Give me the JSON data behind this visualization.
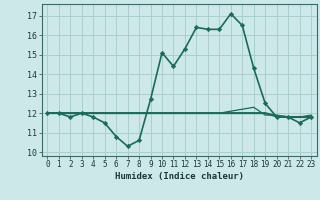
{
  "xlabel": "Humidex (Indice chaleur)",
  "background_color": "#cce8e8",
  "grid_color": "#aacece",
  "line_color": "#1a6b5a",
  "xlim": [
    -0.5,
    23.5
  ],
  "ylim": [
    9.8,
    17.6
  ],
  "yticks": [
    10,
    11,
    12,
    13,
    14,
    15,
    16,
    17
  ],
  "xticks": [
    0,
    1,
    2,
    3,
    4,
    5,
    6,
    7,
    8,
    9,
    10,
    11,
    12,
    13,
    14,
    15,
    16,
    17,
    18,
    19,
    20,
    21,
    22,
    23
  ],
  "series": [
    {
      "x": [
        0,
        1,
        2,
        3,
        4,
        5,
        6,
        7,
        8,
        9,
        10,
        11,
        12,
        13,
        14,
        15,
        16,
        17,
        18,
        19,
        20,
        21,
        22,
        23
      ],
      "y": [
        12,
        12,
        11.8,
        12,
        11.8,
        11.5,
        10.8,
        10.3,
        10.6,
        12.7,
        15.1,
        14.4,
        15.3,
        16.4,
        16.3,
        16.3,
        17.1,
        16.5,
        14.3,
        12.5,
        11.8,
        11.8,
        11.5,
        11.8
      ],
      "lw": 1.2,
      "marker": "D",
      "ms": 2.2,
      "zorder": 5
    },
    {
      "x": [
        0,
        1,
        2,
        3,
        4,
        5,
        6,
        7,
        8,
        9,
        10,
        11,
        12,
        13,
        14,
        15,
        16,
        17,
        18,
        19,
        20,
        21,
        22,
        23
      ],
      "y": [
        12,
        12,
        12,
        12,
        12,
        12,
        12,
        12,
        12,
        12,
        12,
        12,
        12,
        12,
        12,
        12,
        12.1,
        12.2,
        12.3,
        11.9,
        11.9,
        11.8,
        11.8,
        11.9
      ],
      "lw": 0.9,
      "marker": null,
      "ms": 0,
      "zorder": 3
    },
    {
      "x": [
        0,
        1,
        2,
        3,
        4,
        5,
        6,
        7,
        8,
        9,
        10,
        11,
        12,
        13,
        14,
        15,
        16,
        17,
        18,
        19,
        20,
        21,
        22,
        23
      ],
      "y": [
        12,
        12,
        12,
        12,
        12,
        12,
        12,
        12,
        12,
        12,
        12,
        12,
        12,
        12,
        12,
        12,
        12,
        12,
        12,
        12,
        11.85,
        11.8,
        11.8,
        11.8
      ],
      "lw": 1.5,
      "marker": null,
      "ms": 0,
      "zorder": 2
    },
    {
      "x": [
        0,
        1,
        2,
        3,
        4,
        5,
        6,
        7,
        8,
        9,
        10,
        11,
        12,
        13,
        14,
        15,
        16,
        17,
        18,
        19,
        20,
        21,
        22,
        23
      ],
      "y": [
        12,
        12,
        12,
        12,
        12,
        12,
        12,
        12,
        12,
        12,
        12,
        12,
        12,
        12,
        12,
        12,
        12,
        12,
        12,
        12,
        11.8,
        11.8,
        11.8,
        11.8
      ],
      "lw": 0.8,
      "marker": null,
      "ms": 0,
      "zorder": 1
    }
  ]
}
